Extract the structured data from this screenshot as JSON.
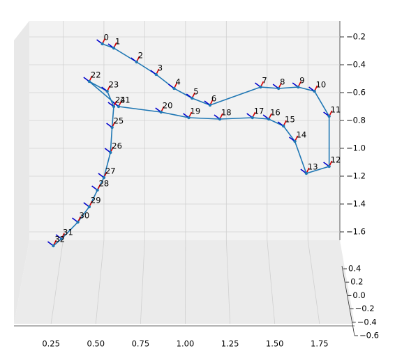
{
  "chart_data": {
    "type": "line3d",
    "color": "#1f77b4",
    "grid": true,
    "x": [
      0.49,
      0.56,
      0.7,
      0.82,
      0.93,
      1.04,
      1.15,
      1.46,
      1.57,
      1.69,
      1.79,
      1.88,
      1.88,
      1.74,
      1.67,
      1.6,
      1.51,
      1.41,
      1.21,
      1.02,
      0.85,
      0.59,
      0.41,
      0.52,
      0.56,
      0.55,
      0.54,
      0.5,
      0.46,
      0.41,
      0.34,
      0.24,
      0.19
    ],
    "values": [
      -0.25,
      -0.28,
      -0.38,
      -0.47,
      -0.57,
      -0.64,
      -0.69,
      -0.56,
      -0.57,
      -0.56,
      -0.59,
      -0.77,
      -1.13,
      -1.18,
      -0.95,
      -0.84,
      -0.79,
      -0.78,
      -0.79,
      -0.78,
      -0.74,
      -0.7,
      -0.52,
      -0.59,
      -0.7,
      -0.85,
      -1.03,
      -1.21,
      -1.3,
      -1.42,
      -1.53,
      -1.65,
      -1.7
    ],
    "point_labels": [
      "0",
      "1",
      "2",
      "3",
      "4",
      "5",
      "6",
      "7",
      "8",
      "9",
      "10",
      "11",
      "12",
      "13",
      "14",
      "15",
      "16",
      "17",
      "18",
      "19",
      "20",
      "21",
      "22",
      "23",
      "24",
      "25",
      "26",
      "27",
      "28",
      "29",
      "30",
      "31",
      "32"
    ],
    "xlim": [
      0,
      1.92
    ],
    "xticks": [
      0.25,
      {
        "value": 0.5,
        "label": "0.50"
      },
      0.75,
      {
        "value": 1.0,
        "label": "1.00"
      },
      1.25,
      {
        "value": 1.5,
        "label": "1.50"
      },
      1.75
    ],
    "zlim": [
      -1.7,
      -0.1
    ],
    "zticks": [
      {
        "value": -0.2,
        "label": "−0.2"
      },
      {
        "value": -0.4,
        "label": "−0.4"
      },
      {
        "value": -0.6,
        "label": "−0.6"
      },
      {
        "value": -0.8,
        "label": "−0.8"
      },
      {
        "value": -1.0,
        "label": "−1.0"
      },
      {
        "value": -1.2,
        "label": "−1.2"
      },
      {
        "value": -1.4,
        "label": "−1.4"
      },
      {
        "value": -1.6,
        "label": "−1.6"
      }
    ],
    "ylim": [
      -0.6,
      0.4
    ],
    "yticks": [
      0.4,
      0.2,
      {
        "value": 0.0,
        "label": "0.0"
      },
      {
        "value": -0.2,
        "label": "−0.2"
      },
      {
        "value": -0.4,
        "label": "−0.4"
      },
      {
        "value": -0.6,
        "label": "−0.6"
      }
    ]
  }
}
